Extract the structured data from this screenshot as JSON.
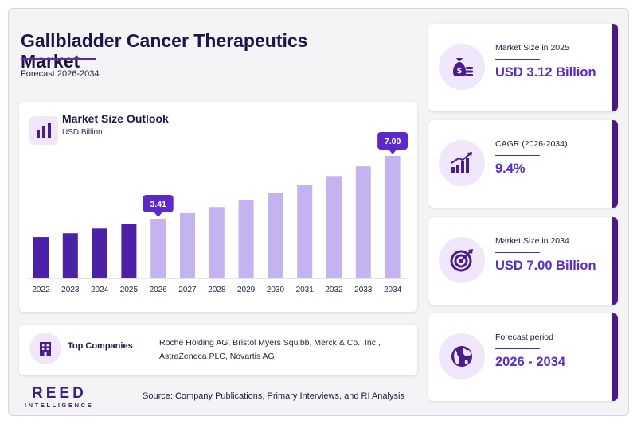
{
  "header": {
    "title": "Gallbladder Cancer Therapeutics Market",
    "subtitle": "Forecast 2026-2034"
  },
  "chart_data": {
    "type": "bar",
    "title": "Market Size Outlook",
    "ylabel": "USD Billion",
    "categories": [
      "2022",
      "2023",
      "2024",
      "2025",
      "2026",
      "2027",
      "2028",
      "2029",
      "2030",
      "2031",
      "2032",
      "2033",
      "2034"
    ],
    "values": [
      2.36,
      2.58,
      2.85,
      3.12,
      3.41,
      3.73,
      4.08,
      4.47,
      4.89,
      5.35,
      5.85,
      6.4,
      7.0
    ],
    "historical_color": "#4b21a8",
    "forecast_color": "#c4b3ef",
    "callouts": [
      {
        "category": "2026",
        "label": "3.41"
      },
      {
        "category": "2034",
        "label": "7.00"
      }
    ],
    "callout_color": "#5b2bc9"
  },
  "companies": {
    "label": "Top Companies",
    "text": "Roche Holding AG, Bristol Myers Squibb, Merck & Co., Inc., AstraZeneca PLC, Novartis AG",
    "icon": "building-icon"
  },
  "footer": {
    "brand": "REED",
    "brand_sub": "INTELLIGENCE",
    "source": "Source: Company Publications, Primary Interviews, and RI Analysis"
  },
  "stats": [
    {
      "label": "Market Size in 2025",
      "value": "USD 3.12 Billion",
      "icon": "money-bag-icon"
    },
    {
      "label": "CAGR (2026-2034)",
      "value": "9.4%",
      "icon": "growth-chart-icon"
    },
    {
      "label": "Market Size in 2034",
      "value": "USD 7.00 Billion",
      "icon": "target-icon"
    },
    {
      "label": "Forecast period",
      "value": "2026 - 2034",
      "icon": "globe-icon"
    }
  ]
}
